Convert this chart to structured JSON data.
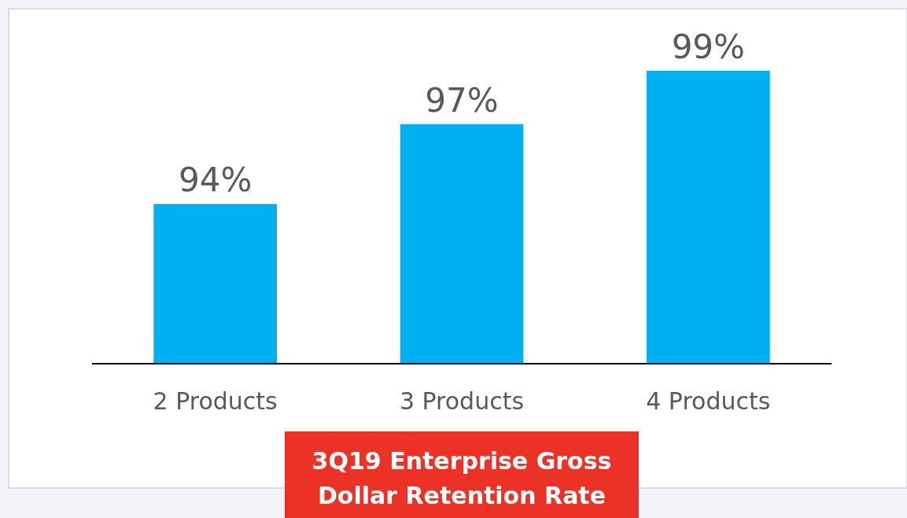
{
  "chart_data": {
    "type": "bar",
    "title": "3Q19 Enterprise Gross Dollar Retention Rate",
    "categories": [
      "2 Products",
      "3 Products",
      "4 Products"
    ],
    "values": [
      94,
      97,
      99
    ],
    "value_labels": [
      "94%",
      "97%",
      "99%"
    ],
    "color": "#00b0f0",
    "ylim": [
      88,
      99
    ],
    "tick_labels": "x"
  }
}
